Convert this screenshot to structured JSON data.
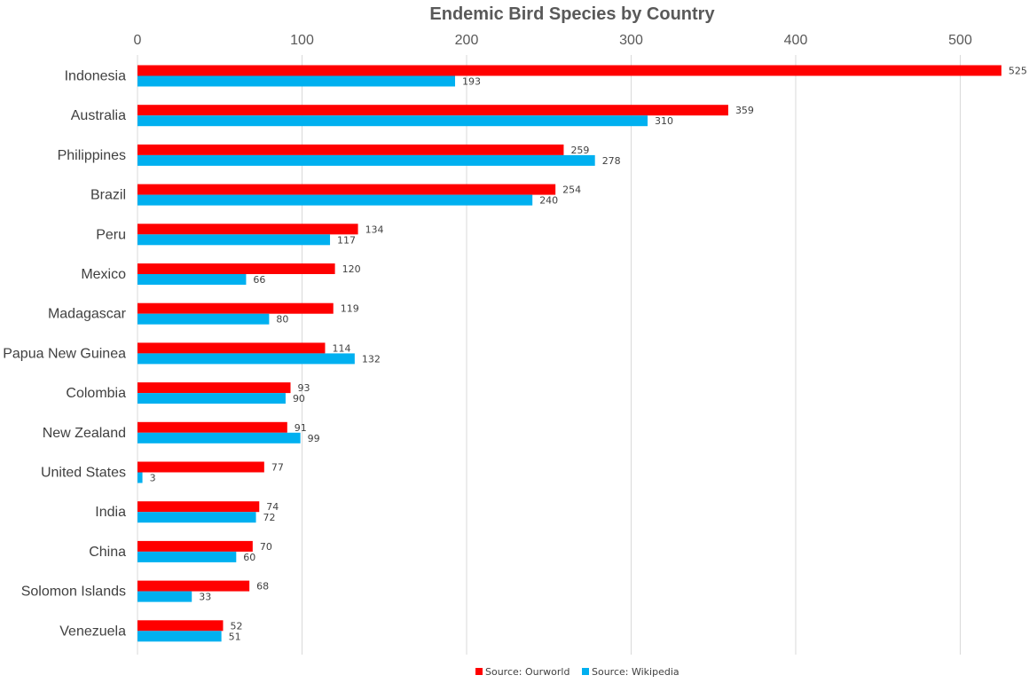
{
  "chart_data": {
    "type": "bar",
    "orientation": "horizontal",
    "title": "Endemic Bird Species by Country",
    "xlabel": "",
    "ylabel": "",
    "xlim": [
      0,
      530
    ],
    "x_ticks": [
      0,
      100,
      200,
      300,
      400,
      500
    ],
    "grid": true,
    "legend_position": "bottom",
    "categories": [
      "Indonesia",
      "Australia",
      "Philippines",
      "Brazil",
      "Peru",
      "Mexico",
      "Madagascar",
      "Papua New Guinea",
      "Colombia",
      "New Zealand",
      "United States",
      "India",
      "China",
      "Solomon Islands",
      "Venezuela"
    ],
    "series": [
      {
        "name": "Source: Ourworld",
        "color": "#ff0000",
        "values": [
          525,
          359,
          259,
          254,
          134,
          120,
          119,
          114,
          93,
          91,
          77,
          74,
          70,
          68,
          52
        ]
      },
      {
        "name": "Source: Wikipedia",
        "color": "#00b0f0",
        "values": [
          193,
          310,
          278,
          240,
          117,
          66,
          80,
          132,
          90,
          99,
          3,
          72,
          60,
          33,
          51
        ]
      }
    ]
  }
}
